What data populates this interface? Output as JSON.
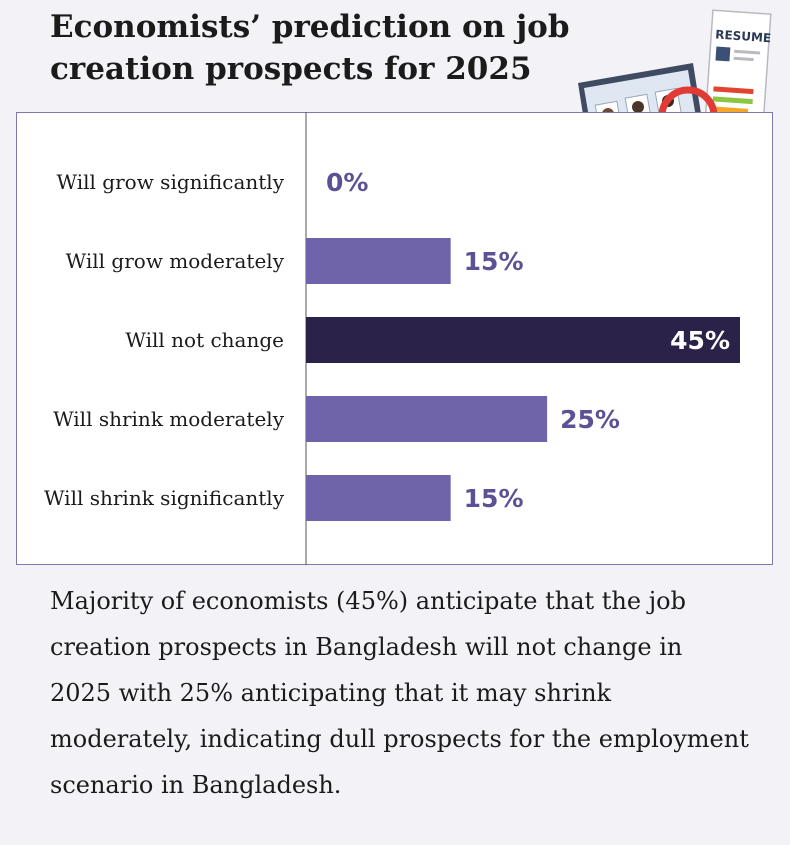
{
  "colors": {
    "bar": "#6f63a9",
    "highlight": "#2a2249",
    "value_text": "#5d5095",
    "value_text_inside": "#ffffff",
    "frame": "#7f78ad",
    "panel": "#ffffff"
  },
  "chart_data": {
    "type": "bar",
    "orientation": "horizontal",
    "title": "Economists’ prediction on job creation prospects for 2025",
    "categories": [
      "Will grow significantly",
      "Will grow moderately",
      "Will not change",
      "Will shrink moderately",
      "Will shrink significantly"
    ],
    "values": [
      0,
      15,
      45,
      25,
      15
    ],
    "value_labels": [
      "0%",
      "15%",
      "45%",
      "25%",
      "15%"
    ],
    "highlight_index": 2,
    "xlim": [
      0,
      45
    ],
    "xlabel": "",
    "ylabel": "",
    "grid": false,
    "legend": "none"
  },
  "illustration": {
    "resume_label": "RESUME"
  },
  "caption": "Majority of economists (45%) anticipate that the job creation prospects in Bangladesh will not change in 2025 with 25% anticipating that it may shrink moderately, indicating dull prospects for the employment scenario in Bangladesh."
}
